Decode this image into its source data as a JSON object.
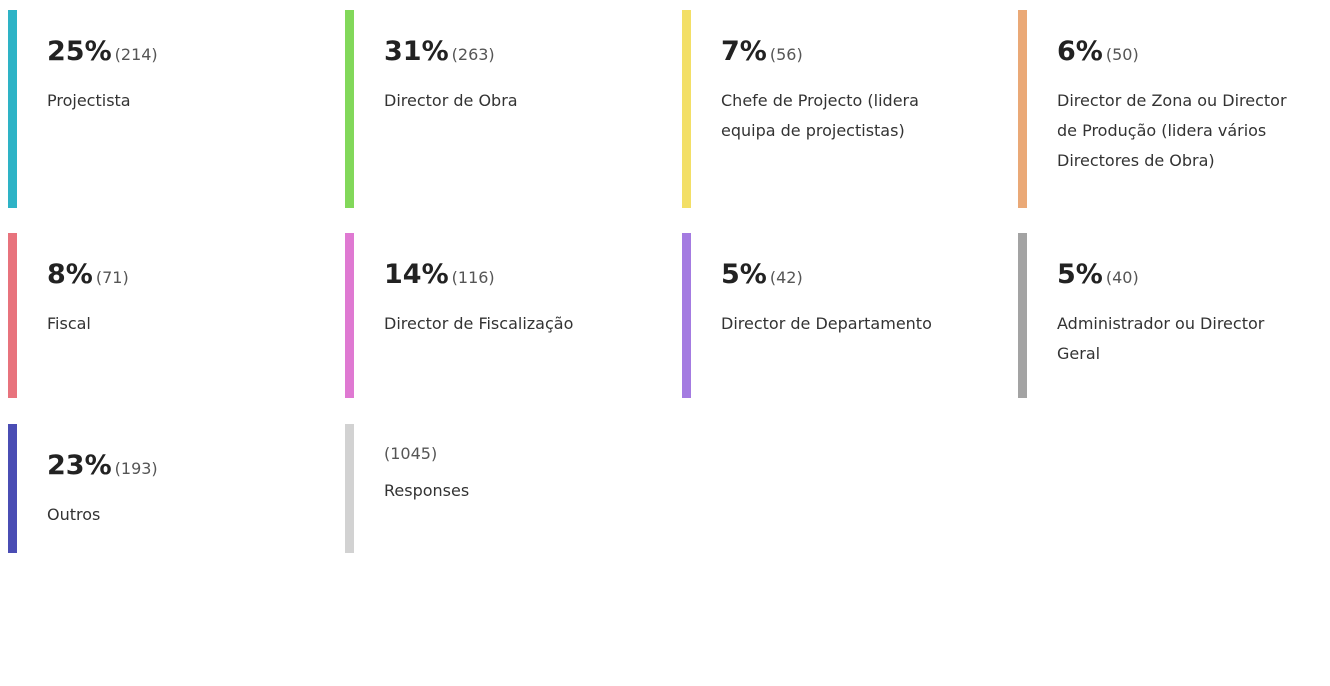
{
  "items": [
    {
      "percent": "25%",
      "count": "(214)",
      "label": [
        "Projectista"
      ],
      "color": "#2eb3c6"
    },
    {
      "percent": "31%",
      "count": "(263)",
      "label": [
        "Director de Obra"
      ],
      "color": "#82d85a"
    },
    {
      "percent": "7%",
      "count": "(56)",
      "label": [
        "Chefe de Projecto (lidera",
        "equipa de projectistas)"
      ],
      "color": "#f3df66"
    },
    {
      "percent": "6%",
      "count": "(50)",
      "label": [
        "Director de Zona ou Director",
        "de Produção (lidera vários",
        "Directores de Obra)"
      ],
      "color": "#eaa977"
    },
    {
      "percent": "8%",
      "count": "(71)",
      "label": [
        "Fiscal"
      ],
      "color": "#e8737d"
    },
    {
      "percent": "14%",
      "count": "(116)",
      "label": [
        "Director de Fiscalização"
      ],
      "color": "#df79d2"
    },
    {
      "percent": "5%",
      "count": "(42)",
      "label": [
        "Director de Departamento"
      ],
      "color": "#a47be1"
    },
    {
      "percent": "5%",
      "count": "(40)",
      "label": [
        "Administrador ou Director",
        "Geral"
      ],
      "color": "#a3a3a3"
    },
    {
      "percent": "23%",
      "count": "(193)",
      "label": [
        "Outros"
      ],
      "color": "#4a4db4"
    },
    {
      "count": "(1045)",
      "label": [
        "Responses"
      ],
      "color": "#d2d2d2"
    }
  ]
}
